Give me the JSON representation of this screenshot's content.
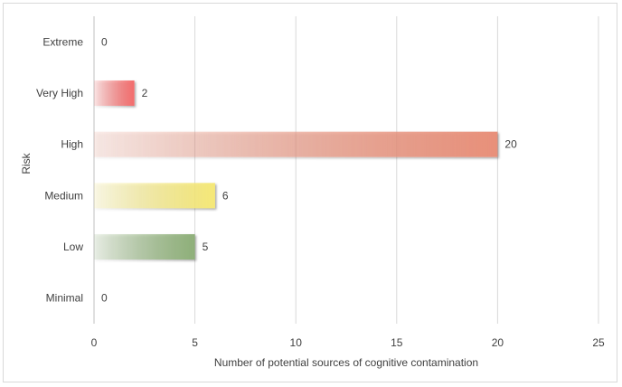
{
  "chart_data": {
    "type": "bar",
    "orientation": "horizontal",
    "categories": [
      "Extreme",
      "Very High",
      "High",
      "Medium",
      "Low",
      "Minimal"
    ],
    "values": [
      0,
      2,
      20,
      6,
      5,
      0
    ],
    "xlabel": "Number of potential sources of cognitive contamination",
    "ylabel": "Risk",
    "xlim": [
      0,
      25
    ],
    "xticks": [
      0,
      5,
      10,
      15,
      20,
      25
    ],
    "grid": "vertical",
    "colors": {
      "Extreme": "#f08080",
      "Very High": "#f36d6d",
      "High": "#e8907a",
      "Medium": "#f5e878",
      "Low": "#8fb07a",
      "Minimal": "#a0a0a0"
    }
  }
}
